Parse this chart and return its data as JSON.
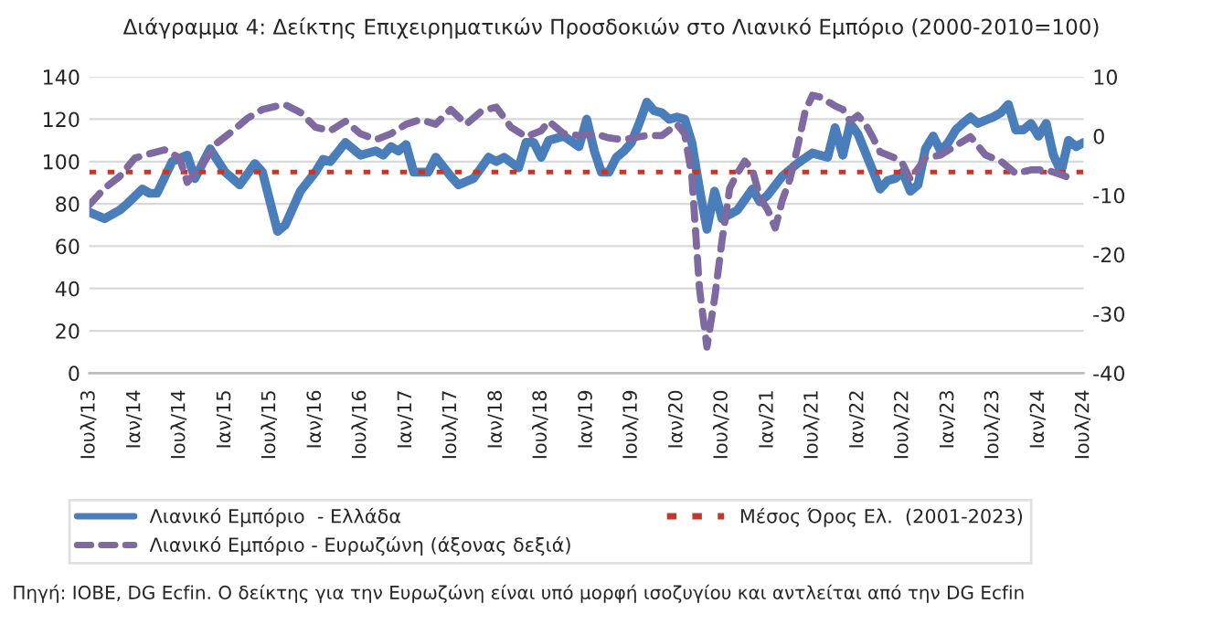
{
  "chart_data": {
    "type": "line",
    "title": "Διάγραμμα 4: Δείκτης Επιχειρηματικών Προσδοκιών στο Λιανικό Εμπόριο (2000-2010=100)",
    "annotations": [
      "Πηγή: ΙΟΒΕ, DG Ecfin. Ο δείκτης για την Ευρωζώνη είναι υπό μορφή ισοζυγίου και αντλείται από την DG Ecfin"
    ],
    "series": [
      {
        "name": "Λιανικό Εμπόριο  - Ελλάδα",
        "color": "#4a7ebb",
        "line_style": "solid",
        "x": [
          "2013-07",
          "2013-09",
          "2013-11",
          "2013-12",
          "2014-02",
          "2014-03",
          "2014-04",
          "2014-06",
          "2014-08",
          "2014-09",
          "2014-11",
          "2015-01",
          "2015-03",
          "2015-05",
          "2015-06",
          "2015-08",
          "2015-09",
          "2015-11",
          "2016-01",
          "2016-02",
          "2016-03",
          "2016-05",
          "2016-07",
          "2016-09",
          "2016-10",
          "2016-11",
          "2016-12",
          "2017-01",
          "2017-02",
          "2017-04",
          "2017-05",
          "2017-07",
          "2017-08",
          "2017-10",
          "2017-12",
          "2018-01",
          "2018-02",
          "2018-04",
          "2018-05",
          "2018-06",
          "2018-07",
          "2018-08",
          "2018-10",
          "2018-12",
          "2019-01",
          "2019-02",
          "2019-03",
          "2019-04",
          "2019-05",
          "2019-06",
          "2019-07",
          "2019-08",
          "2019-09",
          "2019-10",
          "2019-11",
          "2019-12",
          "2020-01",
          "2020-02",
          "2020-03",
          "2020-04",
          "2020-05",
          "2020-06",
          "2020-07",
          "2020-09",
          "2020-11",
          "2020-12",
          "2021-01",
          "2021-03",
          "2021-05",
          "2021-07",
          "2021-09",
          "2021-10",
          "2021-11",
          "2021-12",
          "2022-01",
          "2022-03",
          "2022-04",
          "2022-05",
          "2022-06",
          "2022-07",
          "2022-08",
          "2022-09",
          "2022-10",
          "2022-11",
          "2022-12",
          "2023-01",
          "2023-02",
          "2023-03",
          "2023-04",
          "2023-05",
          "2023-07",
          "2023-08",
          "2023-09",
          "2023-10",
          "2023-11",
          "2023-12",
          "2024-01",
          "2024-02",
          "2024-03",
          "2024-04",
          "2024-05",
          "2024-06",
          "2024-07"
        ],
        "values": [
          76,
          73,
          77,
          80,
          87,
          85,
          85,
          100,
          103,
          92,
          106,
          95,
          89,
          99,
          95,
          67,
          70,
          86,
          95,
          101,
          100,
          109,
          103,
          105,
          103,
          107,
          105,
          108,
          95,
          95,
          102,
          93,
          89,
          92,
          102,
          100,
          102,
          97,
          109,
          109,
          102,
          110,
          112,
          107,
          120,
          105,
          95,
          95,
          102,
          105,
          109,
          118,
          128,
          124,
          123,
          120,
          121,
          120,
          109,
          87,
          68,
          86,
          73,
          77,
          87,
          81,
          84,
          93,
          99,
          104,
          102,
          116,
          103,
          118,
          113,
          96,
          87,
          91,
          92,
          95,
          86,
          89,
          106,
          112,
          105,
          109,
          115,
          118,
          121,
          118,
          121,
          123,
          127,
          115,
          115,
          118,
          112,
          118,
          103,
          95,
          110,
          107,
          109
        ]
      },
      {
        "name": "Λιανικό Εμπόριο - Ευρωζώνη (άξονας δεξιά)",
        "color": "#7e6aa0",
        "line_style": "dashed",
        "axis": "y2",
        "x": [
          "2013-07",
          "2013-09",
          "2013-11",
          "2014-01",
          "2014-03",
          "2014-05",
          "2014-07",
          "2014-08",
          "2014-10",
          "2014-12",
          "2015-02",
          "2015-04",
          "2015-06",
          "2015-08",
          "2015-09",
          "2015-11",
          "2016-01",
          "2016-03",
          "2016-05",
          "2016-07",
          "2016-09",
          "2016-11",
          "2017-01",
          "2017-03",
          "2017-05",
          "2017-07",
          "2017-09",
          "2017-11",
          "2018-01",
          "2018-03",
          "2018-05",
          "2018-07",
          "2018-08",
          "2018-10",
          "2018-12",
          "2019-02",
          "2019-04",
          "2019-06",
          "2019-08",
          "2019-09",
          "2019-11",
          "2020-01",
          "2020-02",
          "2020-03",
          "2020-04",
          "2020-05",
          "2020-06",
          "2020-07",
          "2020-08",
          "2020-09",
          "2020-10",
          "2020-11",
          "2020-12",
          "2021-01",
          "2021-02",
          "2021-03",
          "2021-04",
          "2021-05",
          "2021-06",
          "2021-07",
          "2021-08",
          "2021-10",
          "2021-11",
          "2021-12",
          "2022-01",
          "2022-02",
          "2022-03",
          "2022-04",
          "2022-06",
          "2022-07",
          "2022-08",
          "2022-10",
          "2022-12",
          "2023-02",
          "2023-04",
          "2023-06",
          "2023-07",
          "2023-08",
          "2023-10",
          "2023-12",
          "2024-02",
          "2024-04",
          "2024-06"
        ],
        "values": [
          -11.6,
          -8.8,
          -6.8,
          -3.7,
          -3.0,
          -2.3,
          -3.7,
          -7.8,
          -4.7,
          -1.1,
          0.9,
          3.0,
          4.5,
          5.1,
          5.3,
          4.0,
          1.5,
          0.9,
          2.5,
          0.4,
          -0.6,
          0.4,
          2.0,
          2.8,
          2.0,
          4.5,
          2.0,
          4.2,
          4.9,
          1.5,
          -0.1,
          0.9,
          2.5,
          0.4,
          0.1,
          0.4,
          -0.3,
          -0.6,
          -0.1,
          0.1,
          0.1,
          2.0,
          0.4,
          -6.8,
          -25.8,
          -35.6,
          -27.4,
          -17.6,
          -8.8,
          -6.3,
          -4.2,
          -5.7,
          -10.4,
          -12.4,
          -15.5,
          -10.9,
          -7.3,
          -2.1,
          4.0,
          6.9,
          6.6,
          5.1,
          4.5,
          2.5,
          3.5,
          2.0,
          -0.1,
          -2.7,
          -3.7,
          -4.7,
          -7.3,
          -3.7,
          -3.2,
          -1.6,
          -0.1,
          -3.2,
          -3.7,
          -4.2,
          -6.3,
          -5.7,
          -5.7,
          -6.5,
          -7.5
        ]
      }
    ],
    "ref_lines": [
      {
        "axis": "y",
        "value": 95,
        "label": "Μέσος Όρος Ελ.  (2001-2023)",
        "color": "#c0392b",
        "line_style": "dotted"
      }
    ],
    "xlim": [
      "2013-07",
      "2024-07"
    ],
    "xticks": [
      {
        "value": "2013-07",
        "label": "Ιουλ/13"
      },
      {
        "value": "2014-01",
        "label": "Ιαν/14"
      },
      {
        "value": "2014-07",
        "label": "Ιουλ/14"
      },
      {
        "value": "2015-01",
        "label": "Ιαν/15"
      },
      {
        "value": "2015-07",
        "label": "Ιουλ/15"
      },
      {
        "value": "2016-01",
        "label": "Ιαν/16"
      },
      {
        "value": "2016-07",
        "label": "Ιουλ/16"
      },
      {
        "value": "2017-01",
        "label": "Ιαν/17"
      },
      {
        "value": "2017-07",
        "label": "Ιουλ/17"
      },
      {
        "value": "2018-01",
        "label": "Ιαν/18"
      },
      {
        "value": "2018-07",
        "label": "Ιουλ/18"
      },
      {
        "value": "2019-01",
        "label": "Ιαν/19"
      },
      {
        "value": "2019-07",
        "label": "Ιουλ/19"
      },
      {
        "value": "2020-01",
        "label": "Ιαν/20"
      },
      {
        "value": "2020-07",
        "label": "Ιουλ/20"
      },
      {
        "value": "2021-01",
        "label": "Ιαν/21"
      },
      {
        "value": "2021-07",
        "label": "Ιουλ/21"
      },
      {
        "value": "2022-01",
        "label": "Ιαν/22"
      },
      {
        "value": "2022-07",
        "label": "Ιουλ/22"
      },
      {
        "value": "2023-01",
        "label": "Ιαν/23"
      },
      {
        "value": "2023-07",
        "label": "Ιουλ/23"
      },
      {
        "value": "2024-01",
        "label": "Ιαν/24"
      },
      {
        "value": "2024-07",
        "label": "Ιουλ/24"
      }
    ],
    "ylim": [
      0,
      140
    ],
    "yticks": [
      0,
      20,
      40,
      60,
      80,
      100,
      120,
      140
    ],
    "y2lim": [
      -40,
      10
    ],
    "y2ticks": [
      -40,
      -30,
      -20,
      -10,
      0,
      10
    ],
    "grid": "y",
    "legend": "bottom",
    "marker": "none"
  }
}
